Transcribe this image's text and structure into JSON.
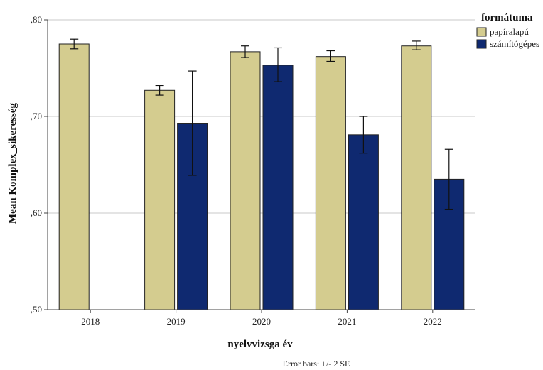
{
  "chart_data": {
    "type": "bar",
    "categories": [
      "2018",
      "2019",
      "2020",
      "2021",
      "2022"
    ],
    "series": [
      {
        "name": "papíralapú",
        "color": "#d4cc8f",
        "values": [
          0.775,
          0.727,
          0.767,
          0.762,
          0.773
        ],
        "err_low": [
          0.77,
          0.722,
          0.761,
          0.757,
          0.769
        ],
        "err_high": [
          0.78,
          0.732,
          0.773,
          0.768,
          0.778
        ]
      },
      {
        "name": "számítógépes",
        "color": "#0f2970",
        "values": [
          null,
          0.693,
          0.753,
          0.681,
          0.635
        ],
        "err_low": [
          null,
          0.639,
          0.736,
          0.662,
          0.604
        ],
        "err_high": [
          null,
          0.747,
          0.771,
          0.7,
          0.666
        ]
      }
    ],
    "xlabel": "nyelvvizsga év",
    "ylabel": "Mean Komplex_sikeresség",
    "ylim": [
      0.5,
      0.8
    ],
    "yticks": [
      0.5,
      0.6,
      0.7,
      0.8
    ],
    "ytick_labels": [
      ",50",
      ",60",
      ",70",
      ",80"
    ],
    "grid": true,
    "legend": {
      "title": "formátuma",
      "placement": "top-right"
    },
    "footnote": "Error bars: +/- 2 SE"
  }
}
